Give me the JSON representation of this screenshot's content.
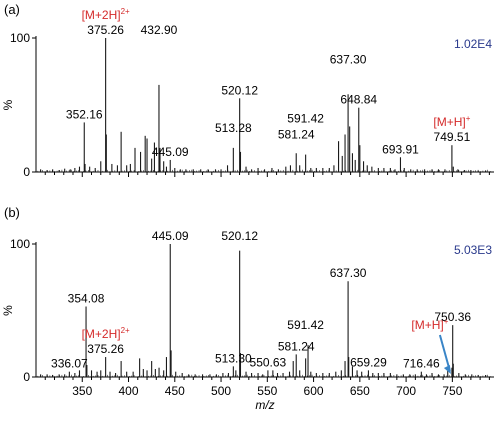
{
  "chart_data": [
    {
      "type": "bar",
      "panel_label": "(a)",
      "intensity_label": "1.02E4",
      "ylabel": "%",
      "xlim": [
        300,
        795
      ],
      "ylim": [
        0,
        100
      ],
      "yticks": [
        0,
        100
      ],
      "peaks": [
        {
          "x": 305,
          "y": 2
        },
        {
          "x": 312,
          "y": 1.5
        },
        {
          "x": 318,
          "y": 2
        },
        {
          "x": 325,
          "y": 1.5
        },
        {
          "x": 331,
          "y": 2.5
        },
        {
          "x": 337,
          "y": 2
        },
        {
          "x": 342,
          "y": 3
        },
        {
          "x": 347,
          "y": 4
        },
        {
          "x": 352.16,
          "y": 37
        },
        {
          "x": 353,
          "y": 6
        },
        {
          "x": 358,
          "y": 4
        },
        {
          "x": 364,
          "y": 3
        },
        {
          "x": 370,
          "y": 8
        },
        {
          "x": 375.26,
          "y": 100
        },
        {
          "x": 376,
          "y": 28
        },
        {
          "x": 382,
          "y": 6
        },
        {
          "x": 388,
          "y": 5
        },
        {
          "x": 392,
          "y": 30
        },
        {
          "x": 398,
          "y": 5
        },
        {
          "x": 402,
          "y": 6
        },
        {
          "x": 407,
          "y": 18
        },
        {
          "x": 413,
          "y": 15
        },
        {
          "x": 418,
          "y": 27
        },
        {
          "x": 420,
          "y": 25
        },
        {
          "x": 425,
          "y": 10
        },
        {
          "x": 428,
          "y": 22
        },
        {
          "x": 432.9,
          "y": 65
        },
        {
          "x": 434,
          "y": 18
        },
        {
          "x": 438,
          "y": 8
        },
        {
          "x": 441,
          "y": 4
        },
        {
          "x": 445.09,
          "y": 9
        },
        {
          "x": 450,
          "y": 3
        },
        {
          "x": 456,
          "y": 2
        },
        {
          "x": 462,
          "y": 2
        },
        {
          "x": 470,
          "y": 2
        },
        {
          "x": 478,
          "y": 2
        },
        {
          "x": 486,
          "y": 2
        },
        {
          "x": 494,
          "y": 2
        },
        {
          "x": 500,
          "y": 2
        },
        {
          "x": 507,
          "y": 5
        },
        {
          "x": 513.28,
          "y": 18
        },
        {
          "x": 520.12,
          "y": 55
        },
        {
          "x": 521,
          "y": 15
        },
        {
          "x": 527,
          "y": 4
        },
        {
          "x": 533,
          "y": 2
        },
        {
          "x": 540,
          "y": 3
        },
        {
          "x": 547,
          "y": 2
        },
        {
          "x": 555,
          "y": 3
        },
        {
          "x": 562,
          "y": 2
        },
        {
          "x": 570,
          "y": 4
        },
        {
          "x": 575,
          "y": 5
        },
        {
          "x": 581.24,
          "y": 14
        },
        {
          "x": 585,
          "y": 5
        },
        {
          "x": 591.42,
          "y": 13
        },
        {
          "x": 597,
          "y": 3
        },
        {
          "x": 603,
          "y": 3
        },
        {
          "x": 610,
          "y": 3
        },
        {
          "x": 617,
          "y": 3
        },
        {
          "x": 622,
          "y": 5
        },
        {
          "x": 627,
          "y": 23
        },
        {
          "x": 631,
          "y": 12
        },
        {
          "x": 634,
          "y": 28
        },
        {
          "x": 637.3,
          "y": 58
        },
        {
          "x": 639,
          "y": 34
        },
        {
          "x": 642,
          "y": 14
        },
        {
          "x": 645,
          "y": 9
        },
        {
          "x": 648.84,
          "y": 48
        },
        {
          "x": 650,
          "y": 20
        },
        {
          "x": 654,
          "y": 8
        },
        {
          "x": 658,
          "y": 5
        },
        {
          "x": 663,
          "y": 4
        },
        {
          "x": 670,
          "y": 3
        },
        {
          "x": 676,
          "y": 3
        },
        {
          "x": 683,
          "y": 3
        },
        {
          "x": 688,
          "y": 2
        },
        {
          "x": 693.91,
          "y": 11
        },
        {
          "x": 698,
          "y": 3
        },
        {
          "x": 705,
          "y": 2
        },
        {
          "x": 712,
          "y": 2
        },
        {
          "x": 720,
          "y": 2
        },
        {
          "x": 728,
          "y": 2
        },
        {
          "x": 735,
          "y": 2
        },
        {
          "x": 742,
          "y": 2
        },
        {
          "x": 749.51,
          "y": 20
        },
        {
          "x": 751,
          "y": 4
        },
        {
          "x": 756,
          "y": 2
        },
        {
          "x": 763,
          "y": 1.5
        },
        {
          "x": 770,
          "y": 1.5
        },
        {
          "x": 778,
          "y": 1
        },
        {
          "x": 786,
          "y": 1
        }
      ],
      "annotations": [
        {
          "text": "[M+2H]",
          "sup": "2+",
          "x": 375.26,
          "y": 100,
          "color": "#d42a2a",
          "row": 2
        },
        {
          "text": "375.26",
          "x": 375.26,
          "y": 100,
          "color": "#000000",
          "row": 1
        },
        {
          "text": "432.90",
          "x": 432.9,
          "y": 100,
          "color": "#000000",
          "row": 1
        },
        {
          "text": "352.16",
          "x": 352.16,
          "y": 37,
          "color": "#000000",
          "row": 1
        },
        {
          "text": "520.12",
          "x": 520.12,
          "y": 55,
          "color": "#000000",
          "row": 1
        },
        {
          "text": "637.30",
          "x": 637.3,
          "y": 78,
          "color": "#000000",
          "row": 1
        },
        {
          "text": "648.84",
          "x": 648.84,
          "y": 48,
          "color": "#000000",
          "row": 1
        },
        {
          "text": "513.28",
          "x": 513.28,
          "y": 27,
          "color": "#000000",
          "row": 1
        },
        {
          "text": "581.24",
          "x": 581.24,
          "y": 22,
          "color": "#000000",
          "row": 1
        },
        {
          "text": "591.42",
          "x": 591.42,
          "y": 34,
          "color": "#000000",
          "row": 1
        },
        {
          "text": "445.09",
          "x": 445.09,
          "y": 9,
          "color": "#000000",
          "row": 1
        },
        {
          "text": "693.91",
          "x": 693.91,
          "y": 11,
          "color": "#000000",
          "row": 1
        },
        {
          "text": "[M+H]",
          "sup": "+",
          "x": 749.51,
          "y": 20,
          "color": "#d42a2a",
          "row": 2
        },
        {
          "text": "749.51",
          "x": 749.51,
          "y": 20,
          "color": "#000000",
          "row": 1
        }
      ]
    },
    {
      "type": "bar",
      "panel_label": "(b)",
      "intensity_label": "5.03E3",
      "ylabel": "%",
      "xlabel": "m/z",
      "xlim": [
        300,
        795
      ],
      "ylim": [
        0,
        100
      ],
      "yticks": [
        0,
        100
      ],
      "xticks": [
        350,
        400,
        450,
        500,
        550,
        600,
        650,
        700,
        750
      ],
      "peaks": [
        {
          "x": 305,
          "y": 2
        },
        {
          "x": 312,
          "y": 2
        },
        {
          "x": 318,
          "y": 1.5
        },
        {
          "x": 325,
          "y": 2
        },
        {
          "x": 331,
          "y": 2
        },
        {
          "x": 336.07,
          "y": 4
        },
        {
          "x": 342,
          "y": 3
        },
        {
          "x": 347,
          "y": 5
        },
        {
          "x": 354.08,
          "y": 53
        },
        {
          "x": 355,
          "y": 9
        },
        {
          "x": 360,
          "y": 5
        },
        {
          "x": 366,
          "y": 4
        },
        {
          "x": 370,
          "y": 5
        },
        {
          "x": 375.26,
          "y": 15
        },
        {
          "x": 380,
          "y": 4
        },
        {
          "x": 386,
          "y": 3
        },
        {
          "x": 392,
          "y": 12
        },
        {
          "x": 398,
          "y": 4
        },
        {
          "x": 405,
          "y": 4
        },
        {
          "x": 412,
          "y": 14
        },
        {
          "x": 416,
          "y": 6
        },
        {
          "x": 420,
          "y": 5
        },
        {
          "x": 425,
          "y": 12
        },
        {
          "x": 429,
          "y": 6
        },
        {
          "x": 433,
          "y": 7
        },
        {
          "x": 438,
          "y": 5
        },
        {
          "x": 441,
          "y": 15
        },
        {
          "x": 445.09,
          "y": 100
        },
        {
          "x": 446,
          "y": 20
        },
        {
          "x": 451,
          "y": 4
        },
        {
          "x": 458,
          "y": 3
        },
        {
          "x": 465,
          "y": 2
        },
        {
          "x": 472,
          "y": 2
        },
        {
          "x": 480,
          "y": 2
        },
        {
          "x": 488,
          "y": 2
        },
        {
          "x": 495,
          "y": 2
        },
        {
          "x": 502,
          "y": 3
        },
        {
          "x": 508,
          "y": 3
        },
        {
          "x": 513.3,
          "y": 8
        },
        {
          "x": 516,
          "y": 5
        },
        {
          "x": 520.12,
          "y": 95
        },
        {
          "x": 521,
          "y": 18
        },
        {
          "x": 527,
          "y": 4
        },
        {
          "x": 533,
          "y": 3
        },
        {
          "x": 540,
          "y": 3
        },
        {
          "x": 545,
          "y": 2
        },
        {
          "x": 550.63,
          "y": 5
        },
        {
          "x": 556,
          "y": 5
        },
        {
          "x": 561,
          "y": 3
        },
        {
          "x": 567,
          "y": 3
        },
        {
          "x": 574,
          "y": 4
        },
        {
          "x": 578,
          "y": 12
        },
        {
          "x": 581.24,
          "y": 17
        },
        {
          "x": 585,
          "y": 5
        },
        {
          "x": 591.42,
          "y": 14
        },
        {
          "x": 594,
          "y": 24
        },
        {
          "x": 597,
          "y": 4
        },
        {
          "x": 603,
          "y": 3
        },
        {
          "x": 610,
          "y": 3
        },
        {
          "x": 617,
          "y": 3
        },
        {
          "x": 624,
          "y": 4
        },
        {
          "x": 630,
          "y": 5
        },
        {
          "x": 634,
          "y": 12
        },
        {
          "x": 637.3,
          "y": 72
        },
        {
          "x": 638,
          "y": 15
        },
        {
          "x": 642,
          "y": 8
        },
        {
          "x": 647,
          "y": 5
        },
        {
          "x": 652,
          "y": 4
        },
        {
          "x": 659.29,
          "y": 5
        },
        {
          "x": 664,
          "y": 3
        },
        {
          "x": 670,
          "y": 3
        },
        {
          "x": 676,
          "y": 3
        },
        {
          "x": 683,
          "y": 3
        },
        {
          "x": 690,
          "y": 2
        },
        {
          "x": 697,
          "y": 2
        },
        {
          "x": 704,
          "y": 2
        },
        {
          "x": 710,
          "y": 2
        },
        {
          "x": 716.46,
          "y": 4
        },
        {
          "x": 722,
          "y": 2
        },
        {
          "x": 728,
          "y": 3
        },
        {
          "x": 735,
          "y": 2
        },
        {
          "x": 741,
          "y": 2
        },
        {
          "x": 745,
          "y": 5
        },
        {
          "x": 749.5,
          "y": 7
        },
        {
          "x": 750.36,
          "y": 39
        },
        {
          "x": 751,
          "y": 10
        },
        {
          "x": 757,
          "y": 3
        },
        {
          "x": 764,
          "y": 2
        },
        {
          "x": 771,
          "y": 2
        },
        {
          "x": 778,
          "y": 1.5
        },
        {
          "x": 786,
          "y": 1.5
        }
      ],
      "annotations": [
        {
          "text": "445.09",
          "x": 445.09,
          "y": 100,
          "color": "#000000",
          "row": 1
        },
        {
          "text": "520.12",
          "x": 520.12,
          "y": 100,
          "color": "#000000",
          "row": 1
        },
        {
          "text": "637.30",
          "x": 637.3,
          "y": 72,
          "color": "#000000",
          "row": 1
        },
        {
          "text": "354.08",
          "x": 354.08,
          "y": 53,
          "color": "#000000",
          "row": 1
        },
        {
          "text": "[M+2H]",
          "sup": "2+",
          "x": 375.26,
          "y": 15,
          "color": "#d42a2a",
          "row": 2
        },
        {
          "text": "375.26",
          "x": 375.26,
          "y": 15,
          "color": "#000000",
          "row": 1
        },
        {
          "text": "591.42",
          "x": 591.42,
          "y": 33,
          "color": "#000000",
          "row": 1
        },
        {
          "text": "581.24",
          "x": 581.24,
          "y": 17,
          "color": "#000000",
          "row": 1
        },
        {
          "text": "750.36",
          "x": 750.36,
          "y": 39,
          "color": "#000000",
          "row": 1
        },
        {
          "text": "[M+H]",
          "sup": "+",
          "x": 749.5,
          "y": 7,
          "color": "#d42a2a",
          "row": 1,
          "arrow": true
        },
        {
          "text": "336.07",
          "x": 336.07,
          "y": 4,
          "color": "#000000",
          "row": 1
        },
        {
          "text": "513.30",
          "x": 513.3,
          "y": 8,
          "color": "#000000",
          "row": 1
        },
        {
          "text": "550.63",
          "x": 550.63,
          "y": 5,
          "color": "#000000",
          "row": 1
        },
        {
          "text": "659.29",
          "x": 659.29,
          "y": 5,
          "color": "#000000",
          "row": 1
        },
        {
          "text": "716.46",
          "x": 716.46,
          "y": 4,
          "color": "#000000",
          "row": 1
        }
      ]
    }
  ],
  "colors": {
    "axis": "#000000",
    "peaks": "#1a1a1a",
    "intensity": "#2a3a8c",
    "ion_label": "#d42a2a",
    "arrow": "#3a85c7"
  }
}
